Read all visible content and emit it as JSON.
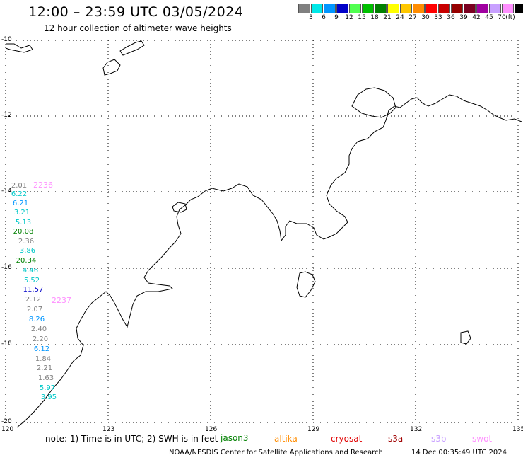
{
  "header": {
    "title": "12:00 – 23:59 UTC 03/05/2024",
    "subtitle": "12 hour collection of altimeter wave heights"
  },
  "legend": {
    "colors": [
      "#808080",
      "#00e8e8",
      "#0096ff",
      "#0000c8",
      "#50ff50",
      "#00c000",
      "#008000",
      "#ffff00",
      "#ffc800",
      "#ff8c00",
      "#ff0000",
      "#c80000",
      "#960000",
      "#7a0020",
      "#a000a0",
      "#c8a0ff",
      "#ff90ff",
      "#000000"
    ],
    "labels": [
      "3",
      "6",
      "9",
      "12",
      "15",
      "18",
      "21",
      "24",
      "27",
      "30",
      "33",
      "36",
      "39",
      "42",
      "45",
      "70",
      "(ft)"
    ]
  },
  "map": {
    "lon_labels": [
      "120",
      "123",
      "126",
      "129",
      "132",
      "135"
    ],
    "lat_labels": [
      "-10",
      "-12",
      "-14",
      "-16",
      "-18",
      "-20"
    ],
    "track_ids": [
      {
        "text": "2236",
        "color": "#ff90ff"
      },
      {
        "text": "2237",
        "color": "#ff90ff"
      }
    ],
    "wave_heights": [
      {
        "text": "2.01",
        "color": "#808080"
      },
      {
        "text": "6.22",
        "color": "#00c8c8"
      },
      {
        "text": "6.21",
        "color": "#0096ff"
      },
      {
        "text": "3.21",
        "color": "#00c8c8"
      },
      {
        "text": "5.13",
        "color": "#00c8c8"
      },
      {
        "text": "20.08",
        "color": "#008000"
      },
      {
        "text": "2.36",
        "color": "#808080"
      },
      {
        "text": "3.86",
        "color": "#00c8c8"
      },
      {
        "text": "20.34",
        "color": "#008000"
      },
      {
        "text": "4.46",
        "color": "#00c8c8"
      },
      {
        "text": "5.52",
        "color": "#00c8c8"
      },
      {
        "text": "11.57",
        "color": "#0000c8"
      },
      {
        "text": "2.12",
        "color": "#808080"
      },
      {
        "text": "2.07",
        "color": "#808080"
      },
      {
        "text": "8.26",
        "color": "#0096ff"
      },
      {
        "text": "2.40",
        "color": "#808080"
      },
      {
        "text": "2.20",
        "color": "#808080"
      },
      {
        "text": "6.12",
        "color": "#0096ff"
      },
      {
        "text": "1.84",
        "color": "#808080"
      },
      {
        "text": "2.21",
        "color": "#808080"
      },
      {
        "text": "1.63",
        "color": "#808080"
      },
      {
        "text": "5.97",
        "color": "#00c8c8"
      },
      {
        "text": "3.95",
        "color": "#00c8c8"
      }
    ]
  },
  "footer": {
    "note": "note:  1) Time is in UTC;  2) SWH is in feet",
    "note_overprint": "jason3",
    "satellites": [
      {
        "name": "altika",
        "color": "#ff8c00"
      },
      {
        "name": "cryosat",
        "color": "#e00000"
      },
      {
        "name": "s3a",
        "color": "#a00000"
      },
      {
        "name": "s3b",
        "color": "#c8a0ff"
      },
      {
        "name": "swot",
        "color": "#ff90ff"
      }
    ],
    "credit": "NOAA/NESDIS Center for Satellite Applications and Research",
    "timestamp": "14 Dec 00:35:49 UTC 2024"
  }
}
